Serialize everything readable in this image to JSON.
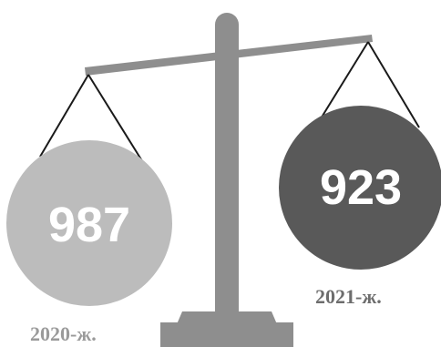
{
  "left_pan": {
    "value": "987",
    "year": "2020-ж.",
    "color": "#bcbcbc"
  },
  "right_pan": {
    "value": "923",
    "year": "2021-ж.",
    "color": "#595959"
  },
  "scale_color": "#8e8e8e",
  "string_color": "#1a1a1a"
}
